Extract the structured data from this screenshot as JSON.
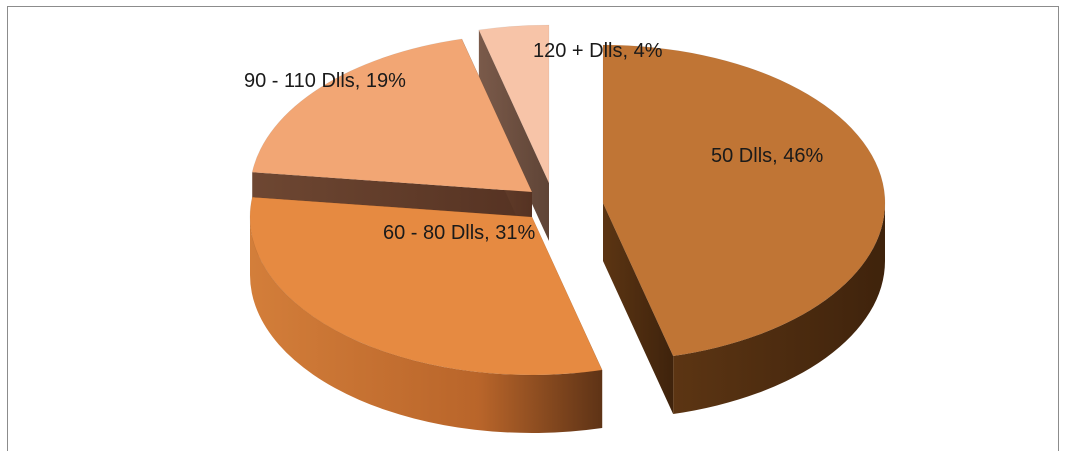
{
  "chart_data": {
    "type": "pie",
    "style": "3d-exploded",
    "title": "",
    "legend": "none",
    "slices": [
      {
        "label": "50 Dlls, 46%",
        "category": "50 Dlls",
        "value": 46,
        "color": "#c07535"
      },
      {
        "label": "60 - 80 Dlls, 31%",
        "category": "60 - 80 Dlls",
        "value": 31,
        "color": "#e68a41"
      },
      {
        "label": "90 - 110 Dlls, 19%",
        "category": "90 - 110 Dlls",
        "value": 19,
        "color": "#f2a674"
      },
      {
        "label": "120 + Dlls, 4%",
        "category": "120 + Dlls",
        "value": 4,
        "color": "#f7c4a8"
      }
    ]
  }
}
